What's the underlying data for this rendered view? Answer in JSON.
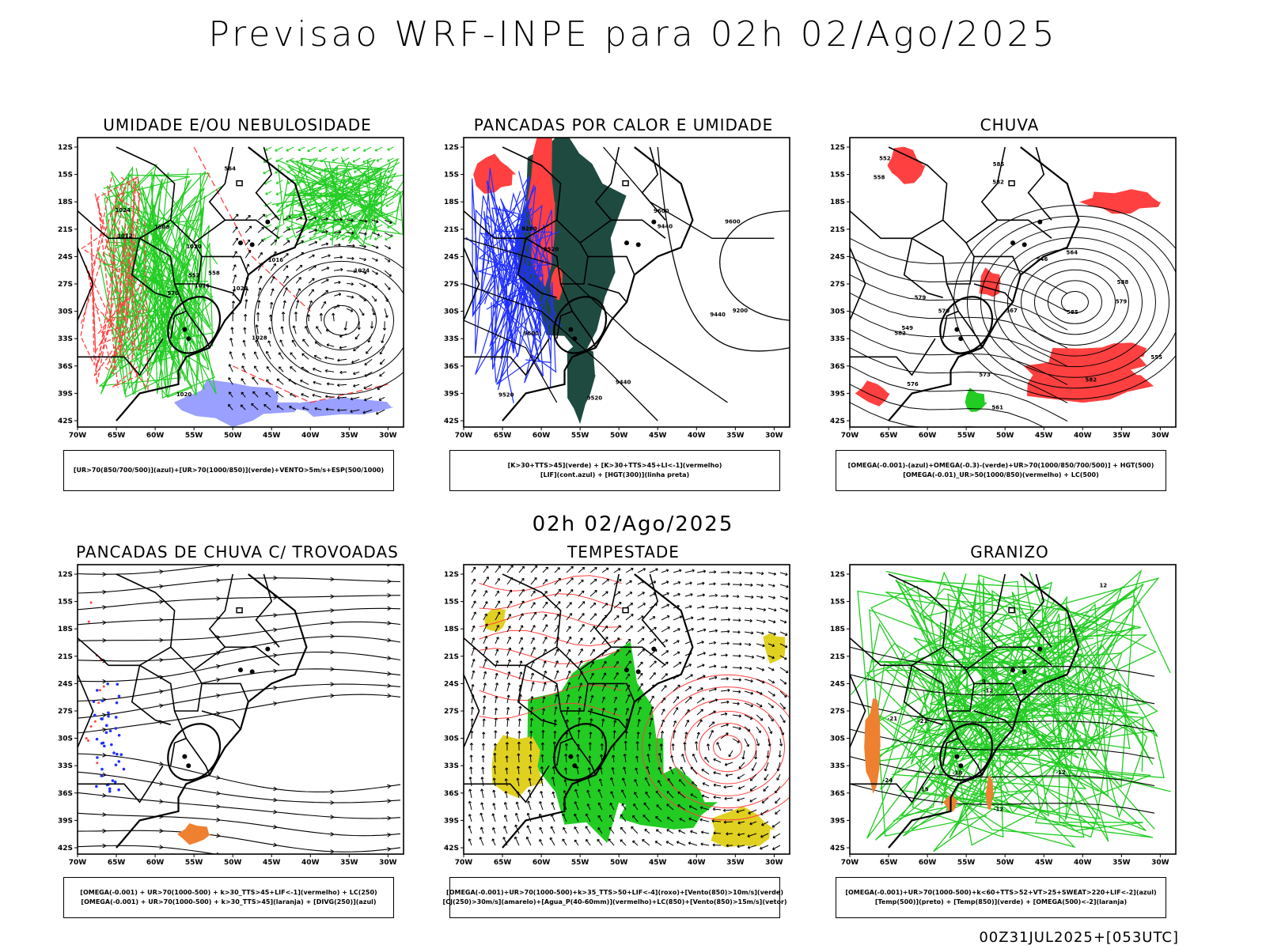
{
  "page": {
    "title": "Previsao WRF-INPE  para 02h 02/Ago/2025",
    "mid_time": "02h 02/Ago/2025",
    "footer": "00Z31JUL2025+[053UTC]"
  },
  "axes": {
    "lat_ticks": [
      "12S",
      "15S",
      "18S",
      "21S",
      "24S",
      "27S",
      "30S",
      "33S",
      "36S",
      "39S",
      "42S"
    ],
    "lon_ticks": [
      "70W",
      "65W",
      "60W",
      "55W",
      "50W",
      "45W",
      "40W",
      "35W",
      "30W"
    ]
  },
  "panels": [
    {
      "title": "UMIDADE E/OU NEBULOSIDADE",
      "legend": [
        "[UR>70(850/700/500)](azul)+[UR>70(1000/850)](verde)+VENTO>5m/s+ESP(500/1000)"
      ],
      "labels": [
        "1016",
        "1020",
        "1024",
        "1028",
        "1012",
        "1008",
        "1016",
        "1020",
        "1024",
        "1028",
        "570",
        "564",
        "558",
        "552"
      ]
    },
    {
      "title": "PANCADAS POR CALOR E UMIDADE",
      "legend": [
        "[K>30+TTS>45](verde) + [K>30+TTS>45+LI<-1](vermelho)",
        "[LIF](cont.azul) + [HGT(300)](linha preta)"
      ],
      "labels": [
        "9600",
        "9600",
        "9600",
        "9520",
        "9440",
        "9520",
        "9440",
        "9280",
        "9200",
        "9520",
        "9440"
      ]
    },
    {
      "title": "CHUVA",
      "legend": [
        "[OMEGA(-0.001)-(azul)+OMEGA(-0.3)-(verde)+UR>70(1000/850/700/500)] + HGT(500)",
        "[OMEGA(-0.01)_UR>50(1000/850)(vermelho) + LC(500)"
      ],
      "labels": [
        "582",
        "588",
        "585",
        "582",
        "579",
        "576",
        "573",
        "570",
        "567",
        "564",
        "561",
        "558",
        "555",
        "552",
        "549",
        "546",
        "585",
        "582",
        "579"
      ]
    },
    {
      "title": "PANCADAS DE CHUVA C/ TROVOADAS",
      "legend": [
        "[OMEGA(-0.001) + UR>70(1000-500) + k>30_TTS>45+LIF<-1](vermelho) + LC(250)",
        "[OMEGA(-0.001) + UR>70(1000-500) + k>30_TTS>45](laranja) + [DIVG(250)](azul)"
      ],
      "labels": []
    },
    {
      "title": "TEMPESTADE",
      "legend": [
        "[OMEGA(-0.001)+UR>70(1000-500)+k>35_TTS>50+LIF<-4](roxo)+[Vento(850)>10m/s](verde)",
        "[CJ(250)>30m/s](amarelo)+[Agua_P(40-60mm)](vermelho)+LC(850)+[Vento(850)>15m/s](vetor)"
      ],
      "labels": []
    },
    {
      "title": "GRANIZO",
      "legend": [
        "[OMEGA(-0.001)+UR>70(1000-500)+k<60+TTS>52+VT>25+SWEAT>220+LIF<-2](azul)",
        "[Temp(500)](preto) + [Temp(850)](verde) + [OMEGA(500)<-2](laranja)"
      ],
      "labels": [
        "-12",
        "-12",
        "-12",
        "-21",
        "-24",
        "-21",
        "-18",
        "12",
        "12",
        "9",
        "15"
      ]
    }
  ],
  "colors": {
    "frame": "#000000",
    "red": "#ff4040",
    "green": "#22cc22",
    "blue": "#2030ff",
    "lightblue": "#9aa0ff",
    "darkgreen": "#1f4a40",
    "yellow": "#e0d020",
    "orange": "#ee8030",
    "purple": "#a020c0"
  },
  "chart_data": [
    {
      "type": "contour-map",
      "title": "UMIDADE E/OU NEBULOSIDADE",
      "xlabel": "",
      "ylabel": "",
      "xlim": [
        -70,
        -28
      ],
      "ylim": [
        -42,
        -10
      ],
      "series": [
        {
          "name": "[UR>70(850/700/500)](azul)"
        },
        {
          "name": "[UR>70(1000/850)](verde)"
        }
      ]
    },
    {
      "type": "contour-map",
      "title": "PANCADAS POR CALOR E UMIDADE",
      "xlabel": "",
      "ylabel": "",
      "xlim": [
        -70,
        -28
      ],
      "ylim": [
        -42,
        -10
      ]
    },
    {
      "type": "contour-map",
      "title": "CHUVA",
      "xlabel": "",
      "ylabel": "",
      "xlim": [
        -70,
        -28
      ],
      "ylim": [
        -42,
        -10
      ]
    },
    {
      "type": "contour-map",
      "title": "PANCADAS DE CHUVA C/ TROVOADAS",
      "xlabel": "",
      "ylabel": "",
      "xlim": [
        -70,
        -28
      ],
      "ylim": [
        -42,
        -10
      ]
    },
    {
      "type": "contour-map",
      "title": "TEMPESTADE",
      "xlabel": "",
      "ylabel": "",
      "xlim": [
        -70,
        -28
      ],
      "ylim": [
        -42,
        -10
      ]
    },
    {
      "type": "contour-map",
      "title": "GRANIZO",
      "xlabel": "",
      "ylabel": "",
      "xlim": [
        -70,
        -28
      ],
      "ylim": [
        -42,
        -10
      ]
    }
  ]
}
